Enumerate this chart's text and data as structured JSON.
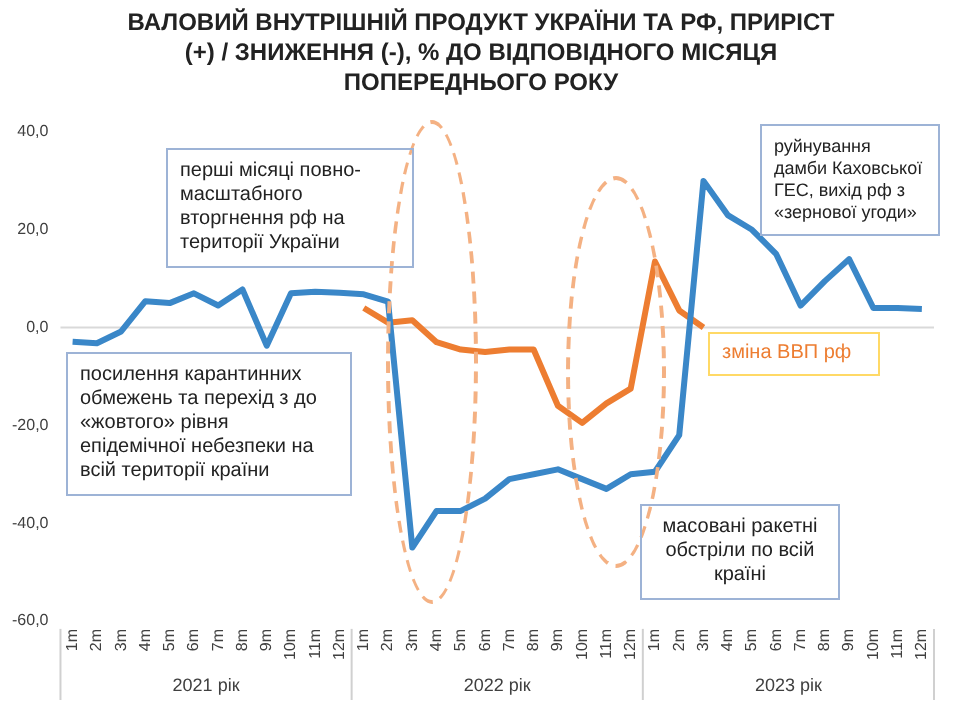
{
  "chart_data": {
    "type": "line",
    "title": "ВАЛОВИЙ ВНУТРІШНІЙ ПРОДУКТ УКРАЇНИ ТА РФ, ПРИРІСТ (+) / ЗНИЖЕННЯ (-), %  ДО ВІДПОВІДНОГО МІСЯЦЯ ПОПЕРЕДНЬОГО РОКУ",
    "categories": [
      "1m",
      "2m",
      "3m",
      "4m",
      "5m",
      "6m",
      "7m",
      "8m",
      "9m",
      "10m",
      "11m",
      "12m",
      "1m",
      "2m",
      "3m",
      "4m",
      "5m",
      "6m",
      "7m",
      "8m",
      "9m",
      "10m",
      "11m",
      "12m",
      "1m",
      "2m",
      "3m",
      "4m",
      "5m",
      "6m",
      "7m",
      "8m",
      "9m",
      "10m",
      "11m",
      "12m"
    ],
    "series": [
      {
        "color": "#3a87c8",
        "values": [
          -2.9,
          -3.2,
          -0.8,
          5.4,
          5.0,
          7.0,
          4.5,
          7.8,
          -3.7,
          7.0,
          7.3,
          7.1,
          6.8,
          5.3,
          -45,
          -37.5,
          -37.5,
          -35,
          -31,
          -30,
          -29,
          -31,
          -33,
          -30,
          -29.5,
          -22,
          30,
          23,
          20,
          15,
          4.5,
          9.5,
          14,
          4,
          4,
          3.8
        ]
      },
      {
        "name": "зміна ВВП рф",
        "color": "#ed7d31",
        "values": [
          null,
          null,
          null,
          null,
          null,
          null,
          null,
          null,
          null,
          null,
          null,
          null,
          4,
          1,
          1.5,
          -3,
          -4.5,
          -5,
          -4.5,
          -4.5,
          -16,
          -19.5,
          -15.5,
          -12.5,
          13.5,
          3.5,
          0,
          null,
          null,
          null,
          null,
          null,
          null,
          null,
          null,
          null
        ]
      }
    ],
    "ylim": [
      -60,
      40
    ],
    "yticks": [
      {
        "value": -60,
        "label": "-60,0"
      },
      {
        "value": -40,
        "label": "-40,0"
      },
      {
        "value": -20,
        "label": "-20,0"
      },
      {
        "value": 0,
        "label": "0,0"
      },
      {
        "value": 20,
        "label": "20,0"
      },
      {
        "value": 40,
        "label": "40,0"
      }
    ],
    "grid": false,
    "legend": false,
    "ref_lines": [
      {
        "axis": "y",
        "value": 0,
        "color": "#d9d9d9"
      }
    ],
    "annotations": [
      "перші місяці повно-масштабного вторгнення рф на території України",
      "посилення карантинних обмежень та перехід з до «жовтого» рівня епідемічної небезпеки на всій території країни",
      "масовані ракетні обстріли по всій країні",
      "руйнування дамби Каховської ГЕС, вихід рф з «зернової угоди»",
      "2021 рік",
      "2022 рік",
      "2023 рік"
    ]
  }
}
